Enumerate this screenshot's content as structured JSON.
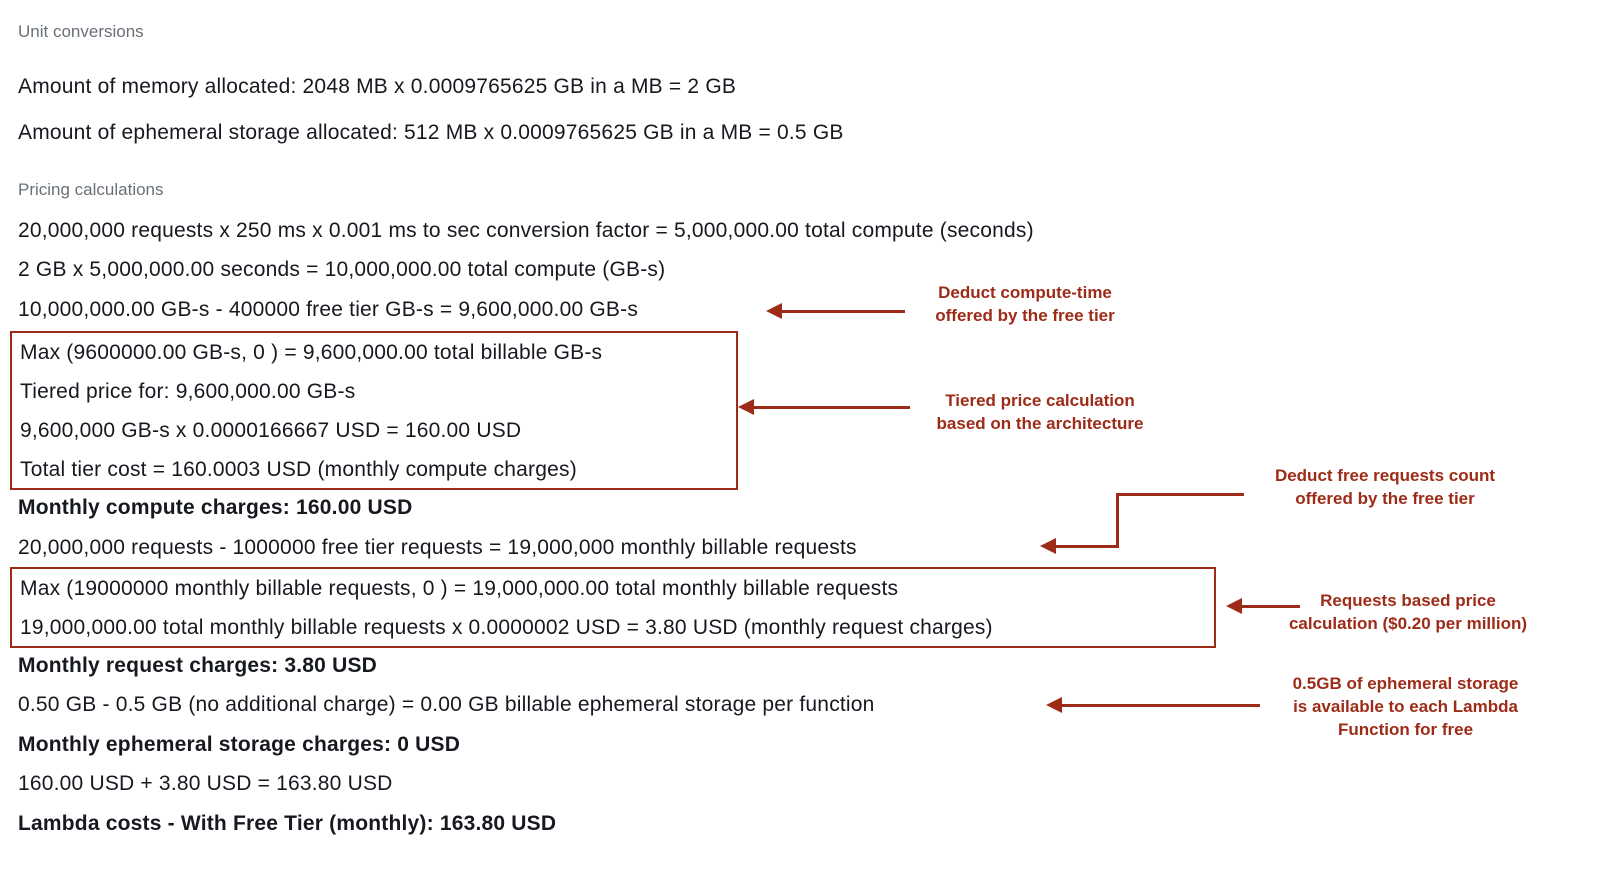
{
  "colors": {
    "accent": "#9d2b17",
    "body_text": "#16191f",
    "heading_gray": "#687078",
    "background": "#ffffff"
  },
  "unit_conversions": {
    "heading": "Unit conversions",
    "memory": "Amount of memory allocated: 2048 MB x 0.0009765625 GB in a MB = 2 GB",
    "ephemeral": "Amount of ephemeral storage allocated: 512 MB x 0.0009765625 GB in a MB = 0.5 GB"
  },
  "pricing": {
    "heading": "Pricing calculations",
    "compute_seconds": "20,000,000 requests x 250 ms x 0.001 ms to sec conversion factor = 5,000,000.00 total compute (seconds)",
    "compute_gbs": "2 GB x 5,000,000.00 seconds = 10,000,000.00 total compute (GB-s)",
    "free_tier_gbs": "10,000,000.00 GB-s - 400000 free tier GB-s = 9,600,000.00 GB-s",
    "tiered_box": [
      "Max (9600000.00 GB-s, 0 ) = 9,600,000.00 total billable GB-s",
      "Tiered price for: 9,600,000.00 GB-s",
      "9,600,000 GB-s x 0.0000166667 USD = 160.00 USD",
      "Total tier cost = 160.0003 USD (monthly compute charges)"
    ],
    "monthly_compute": "Monthly compute charges: 160.00 USD",
    "billable_requests": "20,000,000 requests - 1000000 free tier requests = 19,000,000 monthly billable requests",
    "requests_box": [
      "Max (19000000 monthly billable requests, 0 ) = 19,000,000.00 total monthly billable requests",
      "19,000,000.00 total monthly billable requests x 0.0000002 USD = 3.80 USD (monthly request charges)"
    ],
    "monthly_requests": "Monthly request charges: 3.80 USD",
    "ephemeral_storage": "0.50 GB - 0.5 GB (no additional charge) = 0.00 GB billable ephemeral storage per function",
    "monthly_ephemeral": "Monthly ephemeral storage charges: 0 USD",
    "total_sum": "160.00 USD + 3.80 USD = 163.80 USD",
    "lambda_total": "Lambda costs - With Free Tier (monthly): 163.80 USD"
  },
  "annotations": {
    "compute_free_tier": "Deduct compute-time\noffered by the free tier",
    "tiered_price": "Tiered price calculation\nbased on the architecture",
    "requests_free_tier": "Deduct free requests count\noffered by the free tier",
    "requests_price": "Requests based price\ncalculation ($0.20 per million)",
    "ephemeral_free": "0.5GB of ephemeral storage\nis available to each Lambda\nFunction for free"
  }
}
